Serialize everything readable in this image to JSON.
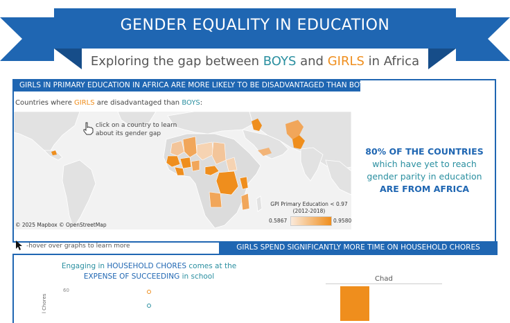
{
  "banner": {
    "title": "GENDER EQUALITY IN EDUCATION",
    "subtitle_pre": "Exploring the gap between ",
    "subtitle_boys": "BOYS",
    "subtitle_mid": " and ",
    "subtitle_girls": "GIRLS",
    "subtitle_post": " in Africa"
  },
  "colors": {
    "ribbon": "#1f66b2",
    "ribbon_dark": "#164d89",
    "boys": "#2a8fa0",
    "girls": "#ef8e1d"
  },
  "section1": {
    "header": "GIRLS IN PRIMARY EDUCATION IN AFRICA ARE MORE LIKELY TO BE DISADVANTAGED THAN BOYS",
    "caption_pre": "Countries where ",
    "caption_girls": "GIRLS",
    "caption_mid": " are disadvantaged than ",
    "caption_boys": "BOYS",
    "caption_post": ":",
    "map": {
      "hint_line1": "click on a country to learn",
      "hint_line2": "about its gender gap",
      "attribution": "© 2025 Mapbox  © OpenStreetMap",
      "legend_title_line1": "GPI Primary Education < 0.97",
      "legend_title_line2": "(2012-2018)",
      "legend_min": "0.5867",
      "legend_max": "0.9580",
      "pointer_icon": "hand-pointer-icon"
    },
    "stat": {
      "line1": "80% OF THE COUNTRIES",
      "line2": "which have yet to reach",
      "line3": "gender parity in education",
      "line4": "ARE FROM AFRICA"
    }
  },
  "hover_hint": "-hover over graphs to learn more",
  "section2": {
    "header": "GIRLS SPEND SIGNIFICANTLY MORE TIME ON HOUSEHOLD CHORES",
    "title_pre": "Engaging in ",
    "title_chores": "HOUSEHOLD CHORES",
    "title_mid": " comes at the",
    "title_expense": "EXPENSE OF SUCCEEDING",
    "title_post": " in school",
    "y_tick": "60",
    "y_label": "l Chores",
    "bar_label": "Chad"
  }
}
